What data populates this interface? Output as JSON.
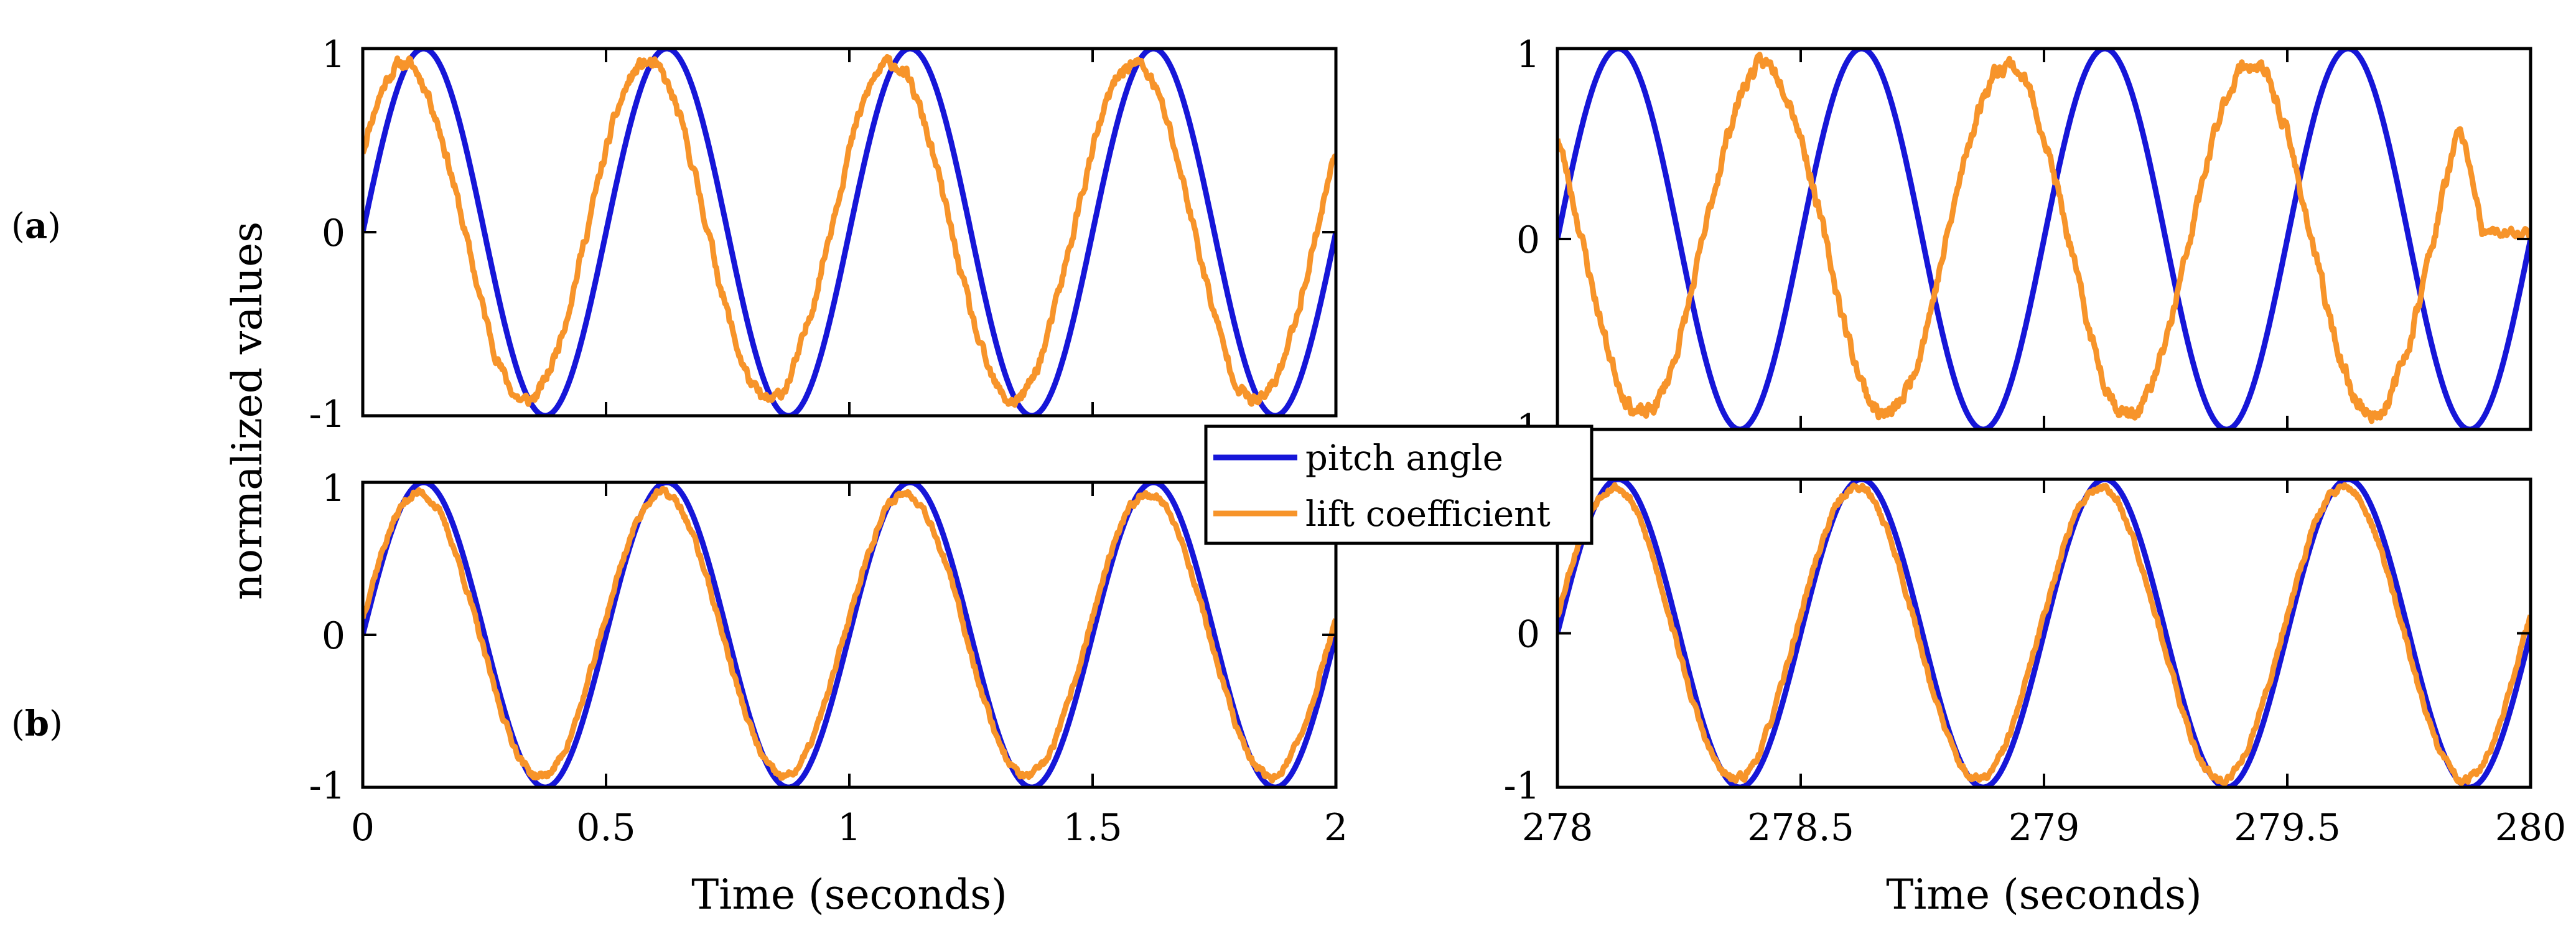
{
  "figure": {
    "ylabel": "normalized  values",
    "panel_labels": [
      {
        "id": "a",
        "prefix": "(",
        "letter": "a",
        "suffix": ")"
      },
      {
        "id": "b",
        "prefix": "(",
        "letter": "b",
        "suffix": ")"
      }
    ],
    "legend": [
      {
        "name": "pitch angle",
        "color": "#1616d8"
      },
      {
        "name": "lift coefficient",
        "color": "#f7942a"
      }
    ]
  },
  "colors": {
    "pitch": "#1616d8",
    "lift": "#f7942a",
    "axis": "#000000"
  },
  "chart_data": [
    {
      "id": "a-left",
      "type": "line",
      "xlim": [
        0,
        2
      ],
      "ylim": [
        -1,
        1
      ],
      "xticks": [],
      "yticks": [
        -1,
        0,
        1
      ],
      "xlabel": "",
      "ylabel": "",
      "pitch": {
        "freq": 2.0,
        "phase": 0.0,
        "amp": 1.0,
        "t0": 0
      },
      "lift": {
        "amp": 0.92,
        "phase_shift": -0.04,
        "noise": 0.035,
        "seed": 11
      },
      "series": [
        {
          "name": "pitch angle"
        },
        {
          "name": "lift coefficient"
        }
      ]
    },
    {
      "id": "a-right",
      "type": "line",
      "xlim": [
        278,
        280
      ],
      "ylim": [
        -1,
        1
      ],
      "xticks": [],
      "yticks": [
        -1,
        0,
        1
      ],
      "xlabel": "",
      "ylabel": "",
      "pitch": {
        "freq": 2.0,
        "phase": 0.0,
        "amp": 1.0,
        "t0": 278
      },
      "lift": {
        "amp": 0.92,
        "phase_shift": 0.3,
        "noise": 0.04,
        "seed": 23,
        "flat_after": 279.85,
        "flat_value": 0.03
      },
      "series": [
        {
          "name": "pitch angle"
        },
        {
          "name": "lift coefficient"
        }
      ]
    },
    {
      "id": "b-left",
      "type": "line",
      "xlim": [
        0,
        2
      ],
      "ylim": [
        -1,
        1
      ],
      "xticks": [
        0,
        0.5,
        1,
        1.5,
        2
      ],
      "yticks": [
        -1,
        0,
        1
      ],
      "xlabel": "Time (seconds)",
      "ylabel": "",
      "pitch": {
        "freq": 2.0,
        "phase": 0.0,
        "amp": 1.0,
        "t0": 0
      },
      "lift": {
        "amp": 0.93,
        "phase_shift": -0.01,
        "noise": 0.025,
        "seed": 37
      },
      "series": [
        {
          "name": "pitch angle"
        },
        {
          "name": "lift coefficient"
        }
      ]
    },
    {
      "id": "b-right",
      "type": "line",
      "xlim": [
        278,
        280
      ],
      "ylim": [
        -1,
        1
      ],
      "xticks": [
        278,
        278.5,
        279,
        279.5,
        280
      ],
      "yticks": [
        -1,
        0
      ],
      "xlabel": "Time (seconds)",
      "ylabel": "",
      "pitch": {
        "freq": 2.0,
        "phase": 0.0,
        "amp": 1.0,
        "t0": 278
      },
      "lift": {
        "amp": 0.95,
        "phase_shift": -0.01,
        "noise": 0.025,
        "seed": 53
      },
      "series": [
        {
          "name": "pitch angle"
        },
        {
          "name": "lift coefficient"
        }
      ]
    }
  ]
}
